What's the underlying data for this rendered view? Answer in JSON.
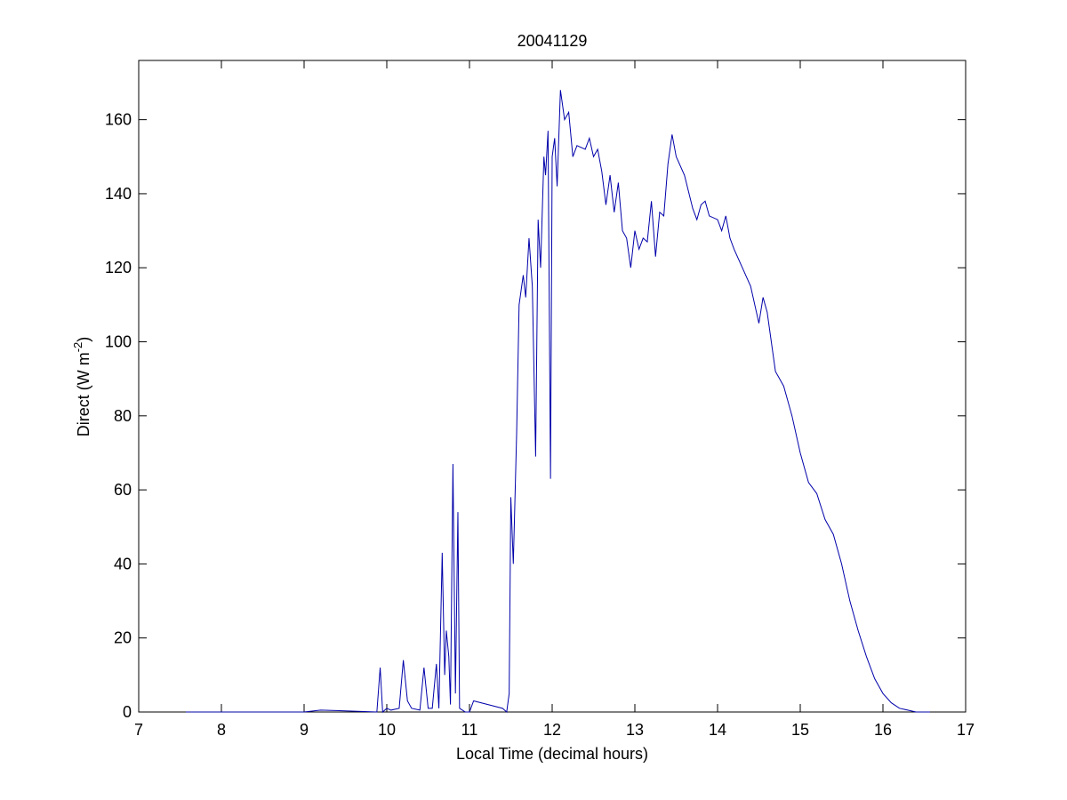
{
  "chart_data": {
    "type": "line",
    "title": "20041129",
    "xlabel": "Local Time (decimal hours)",
    "ylabel": [
      "Direct (W m",
      "-2",
      ")"
    ],
    "xlim": [
      7,
      17
    ],
    "xticks": [
      7,
      8,
      9,
      10,
      11,
      12,
      13,
      14,
      15,
      16,
      17
    ],
    "ylim": [
      0,
      176
    ],
    "yticks": [
      0,
      20,
      40,
      60,
      80,
      100,
      120,
      140,
      160
    ],
    "grid": false,
    "series": [
      {
        "color": "#0000aa",
        "x": [
          7.57,
          9.0,
          9.2,
          9.5,
          9.88,
          9.92,
          9.95,
          10.0,
          10.05,
          10.15,
          10.2,
          10.25,
          10.3,
          10.4,
          10.45,
          10.5,
          10.55,
          10.6,
          10.63,
          10.67,
          10.7,
          10.72,
          10.75,
          10.77,
          10.8,
          10.83,
          10.86,
          10.88,
          10.95,
          11.0,
          11.05,
          11.4,
          11.45,
          11.48,
          11.5,
          11.53,
          11.57,
          11.6,
          11.65,
          11.68,
          11.72,
          11.76,
          11.8,
          11.83,
          11.86,
          11.9,
          11.92,
          11.95,
          11.98,
          12.0,
          12.03,
          12.06,
          12.1,
          12.15,
          12.2,
          12.25,
          12.3,
          12.4,
          12.45,
          12.5,
          12.55,
          12.6,
          12.65,
          12.7,
          12.75,
          12.8,
          12.85,
          12.9,
          12.95,
          13.0,
          13.05,
          13.1,
          13.15,
          13.2,
          13.25,
          13.3,
          13.35,
          13.4,
          13.45,
          13.5,
          13.6,
          13.7,
          13.75,
          13.8,
          13.85,
          13.9,
          14.0,
          14.05,
          14.1,
          14.15,
          14.2,
          14.3,
          14.4,
          14.5,
          14.55,
          14.6,
          14.65,
          14.7,
          14.75,
          14.8,
          14.9,
          15.0,
          15.1,
          15.2,
          15.3,
          15.4,
          15.5,
          15.6,
          15.7,
          15.8,
          15.9,
          16.0,
          16.1,
          16.2,
          16.3,
          16.4,
          16.57
        ],
        "values": [
          0,
          0,
          0.5,
          0.3,
          0,
          12,
          0,
          1,
          0.5,
          1,
          14,
          3,
          1,
          0.5,
          12,
          1,
          1,
          13,
          1,
          43,
          10,
          22,
          15,
          2,
          67,
          5,
          54,
          1,
          0,
          0,
          3,
          1,
          0,
          5,
          58,
          40,
          75,
          110,
          118,
          112,
          128,
          115,
          69,
          133,
          120,
          150,
          145,
          157,
          63,
          150,
          155,
          142,
          168,
          160,
          162,
          150,
          153,
          152,
          155,
          150,
          152,
          146,
          137,
          145,
          135,
          143,
          130,
          128,
          120,
          130,
          125,
          128,
          127,
          138,
          123,
          135,
          134,
          148,
          156,
          150,
          145,
          136,
          133,
          137,
          138,
          134,
          133,
          130,
          134,
          128,
          125,
          120,
          115,
          105,
          112,
          108,
          100,
          92,
          90,
          88,
          80,
          70,
          62,
          59,
          52,
          48,
          40,
          30,
          22,
          15,
          9,
          5,
          2.5,
          1,
          0.5,
          0,
          0
        ]
      }
    ]
  }
}
